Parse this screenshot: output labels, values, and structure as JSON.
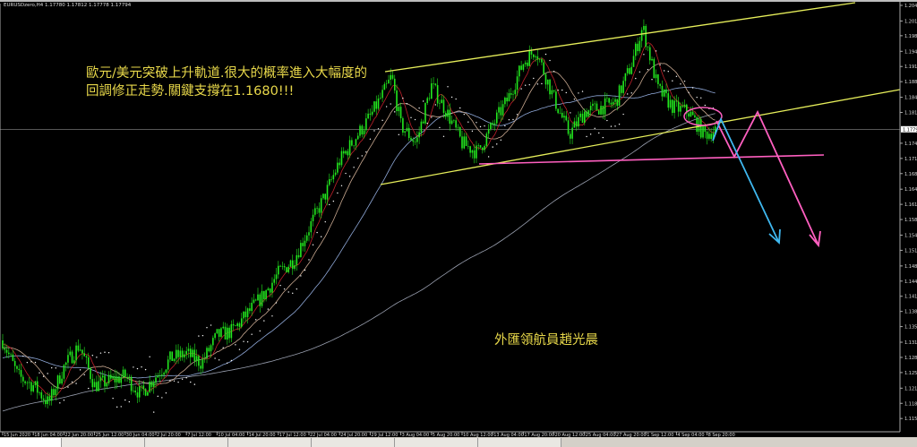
{
  "window": {
    "title": "EURUSDzero,H4 1.17780 1.17812 1.17778 1.17794"
  },
  "annotations": {
    "line1": "歐元/美元突破上升軌道.很大的概率進入大幅度的",
    "line2": "回調修正走勢.關鍵支撐在1.1680!!!",
    "watermark": "外匯領航員趙光晨"
  },
  "colors": {
    "background": "#000000",
    "candle": "#22e81e",
    "channel": "#e6ee5a",
    "support": "#ff5fc0",
    "arrow_blue": "#3fb8f0",
    "arrow_pink": "#ff5fc0",
    "ma_fast": "#c0202a",
    "ma_mid": "#c8a890",
    "ma_slow": "#8fa8d8",
    "ma_long": "#9aa0b0",
    "sar": "#ffffff"
  },
  "chart_data": {
    "type": "candlestick",
    "symbol": "EURUSDzero",
    "timeframe": "H4",
    "current_price": "1.17794",
    "ylim": [
      1.115,
      1.2049
    ],
    "y_ticks": [
      "1.20490",
      "1.20150",
      "1.19830",
      "1.19490",
      "1.19160",
      "1.18830",
      "1.18490",
      "1.18160",
      "1.17490",
      "1.17160",
      "1.16830",
      "1.16490",
      "1.16160",
      "1.15830",
      "1.15490",
      "1.15160",
      "1.14820",
      "1.14490",
      "1.14160",
      "1.13830",
      "1.13500",
      "1.13160",
      "1.12830",
      "1.12500",
      "1.12160",
      "1.11830",
      "1.11500"
    ],
    "x_ticks": [
      "15 Jun 2020",
      "18 Jun 04:00",
      "22 Jun 20:00",
      "25 Jun 12:00",
      "30 Jun 04:00",
      "2 Jul 20:00",
      "7 Jul 12:00",
      "10 Jul 04:00",
      "14 Jul 20:00",
      "17 Jul 12:00",
      "22 Jul 04:00",
      "24 Jul 20:00",
      "29 Jul 12:00",
      "3 Aug 04:00",
      "5 Aug 20:00",
      "10 Aug 12:00",
      "13 Aug 04:00",
      "17 Aug 20:00",
      "20 Aug 12:00",
      "25 Aug 04:00",
      "27 Aug 20:00",
      "1 Sep 12:00",
      "4 Sep 04:00",
      "8 Sep 20:00"
    ],
    "price_path_by_tick": [
      [
        0,
        1.132
      ],
      [
        0.5,
        1.1242
      ],
      [
        1,
        1.1222
      ],
      [
        1.5,
        1.1183
      ],
      [
        2,
        1.1262
      ],
      [
        2.5,
        1.131
      ],
      [
        3,
        1.1222
      ],
      [
        3.5,
        1.1232
      ],
      [
        4,
        1.1242
      ],
      [
        4.5,
        1.1203
      ],
      [
        5,
        1.1242
      ],
      [
        5.5,
        1.1281
      ],
      [
        6,
        1.1291
      ],
      [
        6.5,
        1.1271
      ],
      [
        7,
        1.133
      ],
      [
        7.5,
        1.134
      ],
      [
        8,
        1.1379
      ],
      [
        8.5,
        1.1417
      ],
      [
        9,
        1.1466
      ],
      [
        9.5,
        1.1495
      ],
      [
        10,
        1.1564
      ],
      [
        10.5,
        1.1632
      ],
      [
        11,
        1.171
      ],
      [
        11.5,
        1.1759
      ],
      [
        12,
        1.1807
      ],
      [
        12.5,
        1.1866
      ],
      [
        12.7,
        1.1895
      ],
      [
        13,
        1.1788
      ],
      [
        13.5,
        1.1749
      ],
      [
        14,
        1.1875
      ],
      [
        14.5,
        1.1817
      ],
      [
        15,
        1.1749
      ],
      [
        15.5,
        1.1729
      ],
      [
        16,
        1.1788
      ],
      [
        16.5,
        1.1846
      ],
      [
        17,
        1.1924
      ],
      [
        17.4,
        1.1954
      ],
      [
        18,
        1.1846
      ],
      [
        18.5,
        1.1768
      ],
      [
        19,
        1.1817
      ],
      [
        19.5,
        1.1827
      ],
      [
        20,
        1.1837
      ],
      [
        20.5,
        1.1915
      ],
      [
        20.9,
        1.2002
      ],
      [
        21.4,
        1.1866
      ],
      [
        21.9,
        1.1827
      ],
      [
        22.4,
        1.1817
      ],
      [
        22.9,
        1.1768
      ],
      [
        23.3,
        1.1779
      ]
    ],
    "indicators": [
      "moving averages (4)",
      "parabolic SAR"
    ],
    "drawings": {
      "upper_channel": "rising trendline",
      "lower_channel": "rising trendline (broken)",
      "support_level": 1.168,
      "projections": [
        "blue down arrow",
        "pink down arrow"
      ]
    }
  }
}
